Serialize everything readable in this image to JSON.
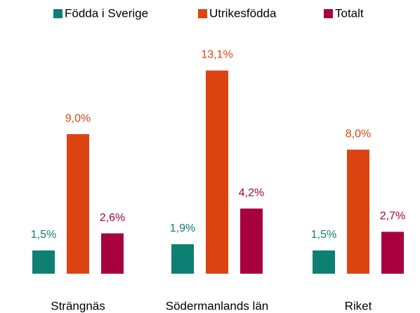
{
  "chart_data": {
    "type": "bar",
    "categories": [
      "Strängnäs",
      "Södermanlands län",
      "Riket"
    ],
    "series": [
      {
        "name": "Födda i Sverige",
        "color": "#0e8073",
        "values": [
          1.5,
          1.9,
          1.5
        ],
        "value_labels": [
          "1,5%",
          "1,9%",
          "1,5%"
        ]
      },
      {
        "name": "Utrikesfödda",
        "color": "#dc4412",
        "values": [
          9.0,
          13.1,
          8.0
        ],
        "value_labels": [
          "9,0%",
          "13,1%",
          "8,0%"
        ]
      },
      {
        "name": "Totalt",
        "color": "#a8003f",
        "values": [
          2.6,
          4.2,
          2.7
        ],
        "value_labels": [
          "2,6%",
          "4,2%",
          "2,7%"
        ]
      }
    ]
  }
}
